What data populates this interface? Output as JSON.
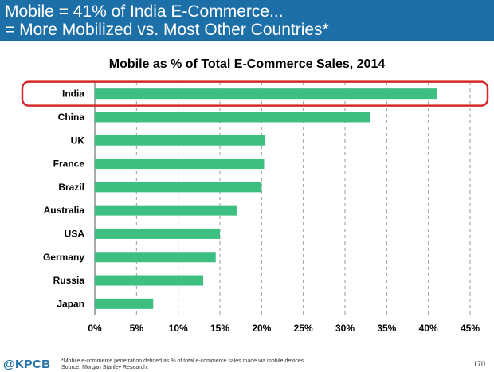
{
  "slide": {
    "header_line1": "Mobile = 41% of India E-Commerce...",
    "header_line2": "= More Mobilized vs. Most Other Countries*",
    "logo": "@KPCB",
    "footnote_line1": "*Mobile e-commerce penetration defined as % of total e-commerce sales made via mobile devices.",
    "footnote_line2": "Source: Morgan Stanley Research.",
    "page_number": "170"
  },
  "colors": {
    "header_bg": "#1d6fa8",
    "bar": "#3ebf82",
    "highlight_border": "#d42a2a",
    "grid": "#999999"
  },
  "chart_data": {
    "type": "bar",
    "orientation": "horizontal",
    "title": "Mobile as % of Total E-Commerce Sales, 2014",
    "categories": [
      "India",
      "China",
      "UK",
      "France",
      "Brazil",
      "Australia",
      "USA",
      "Germany",
      "Russia",
      "Japan"
    ],
    "values": [
      41,
      33,
      20.4,
      20.3,
      20,
      17,
      15,
      14.5,
      13,
      7
    ],
    "xlim": [
      0,
      45
    ],
    "xticks": [
      "0%",
      "5%",
      "10%",
      "15%",
      "20%",
      "25%",
      "30%",
      "35%",
      "40%",
      "45%"
    ],
    "grid": "vertical dashed",
    "highlighted_category": "India"
  }
}
